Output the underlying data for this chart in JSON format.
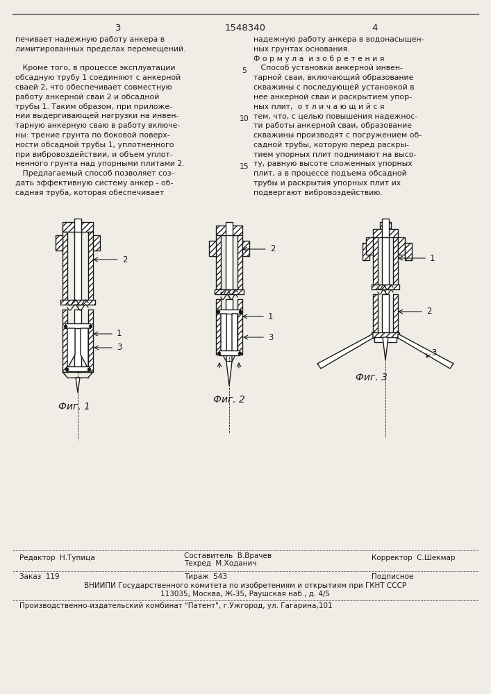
{
  "page_color": "#f0ede6",
  "text_color": "#1a1a1a",
  "title_number": "1548340",
  "page_left": "3",
  "page_right": "4",
  "left_text_lines": [
    "печивает надежную работу анкера в",
    "лимитированных пределах перемещений.",
    "",
    "   Кроме того, в процессе эксплуатации",
    "обсадную трубу 1 соединяют с анкерной",
    "сваей 2, что обеспечивает совместную",
    "работу анкерной сваи 2 и обсадной",
    "трубы 1. Таким образом, при приложе-",
    "нии выдергивающей нагрузки на инвен-",
    "тарную анкерную сваю в работу включе-",
    "ны: трение грунта по боковой поверх-",
    "ности обсадной трубы 1, уплотненного",
    "при вибровоздействии, и объем уплот-",
    "ненного грунта над упорными плитами 2.",
    "   Предлагаемый способ позволяет соз-",
    "дать эффективную систему анкер - об-",
    "садная труба, которая обеспечивает"
  ],
  "right_text_lines": [
    "надежную работу анкера в водонасыщен-",
    "ных грунтах основания.",
    "Ф о р м у л а  и з о б р е т е н и я",
    "   Способ установки анкерной инвен-",
    "тарной сваи, включающий образование",
    "скважины с последующей установкой в",
    "нее анкерной сваи и раскрытием упор-",
    "ных плит,  о т л и ч а ю щ и й с я",
    "тем, что, с целью повышения надежнос-",
    "ти работы анкерной сваи, образование",
    "скважины производят с погружением об-",
    "садной трубы, которую перед раскры-",
    "тием упорных плит поднимают на высо-",
    "ту, равную высоте сложенных упорных",
    "плит, а в процессе подъема обсадной",
    "трубы и раскрытия упорных плит их",
    "подвергают вибровоздействию."
  ],
  "fig1_label": "Фиг. 1",
  "fig2_label": "Фиг. 2",
  "fig3_label": "Фиг. 3",
  "footer_line1_left": "Редактор  Н.Тупица",
  "footer_line1_center": "Составитель  В.Врачев",
  "footer_line1_center2": "Техред  М.Ходанич",
  "footer_line1_right": "Корректор  С.Шекмар",
  "footer_line2": "Заказ  119",
  "footer_line2_center": "Тираж  543",
  "footer_line2_right": "Подписное",
  "footer_line3": "ВНИИПИ Государственного комитета по изобретениям и открытиям при ГКНТ СССР",
  "footer_line4": "113035, Москва, Ж-35, Раушская наб., д. 4/5",
  "footer_line5": "Производственно-издательский комбинат \"Патент\", г.Ужгород, ул. Гагарина,101"
}
